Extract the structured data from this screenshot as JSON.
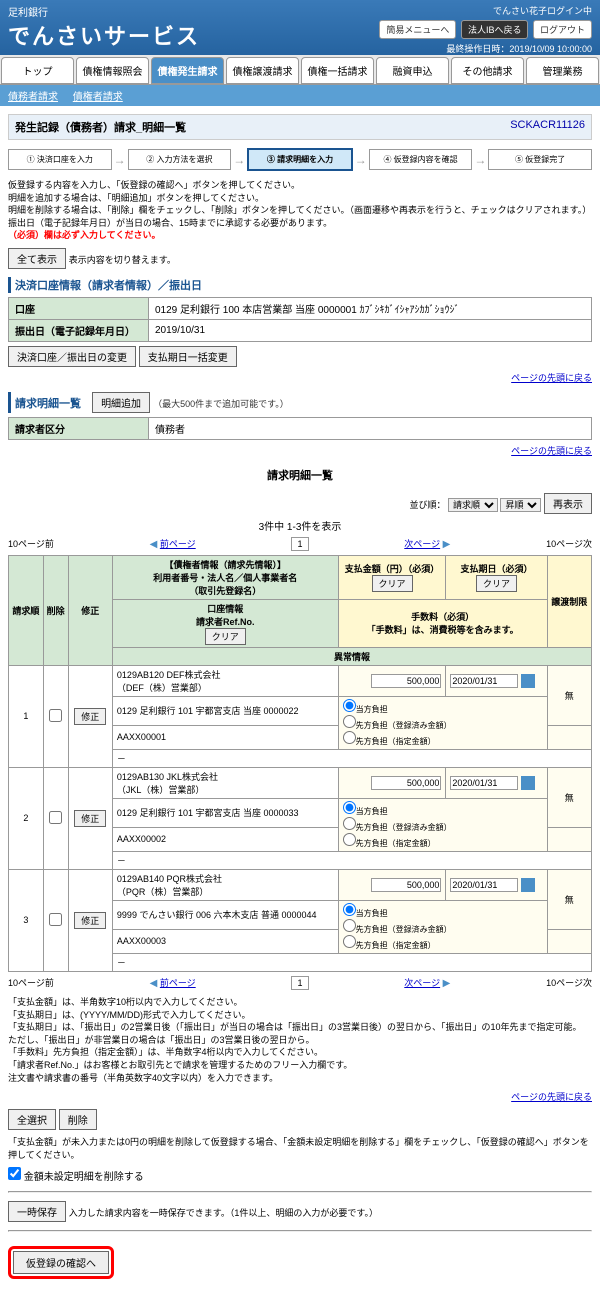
{
  "header": {
    "bank": "足利銀行",
    "service": "でんさいサービス",
    "user": "でんさい花子ログイン中",
    "btns": {
      "simple": "簡易メニューへ",
      "corp": "法人IBへ戻る",
      "logout": "ログアウト"
    },
    "ts": "最終操作日時：2019/10/09 10:00:00"
  },
  "tabs": [
    "トップ",
    "債権情報照会",
    "債権発生請求",
    "債権譲渡請求",
    "債権一括請求",
    "融資申込",
    "その他請求",
    "管理業務"
  ],
  "active_tab": 2,
  "subnav": [
    "債務者請求",
    "債権者請求"
  ],
  "title": "発生記録（債務者）請求_明細一覧",
  "screen_id": "SCKACR11126",
  "steps": [
    "① 決済口座を入力",
    "② 入力方法を選択",
    "③ 請求明細を入力",
    "④ 仮登録内容を確認",
    "⑤ 仮登録完了"
  ],
  "active_step": 2,
  "notes1": "仮登録する内容を入力し、「仮登録の確認へ」ボタンを押してください。\n明細を追加する場合は、「明細追加」ボタンを押してください。\n明細を削除する場合は、「削除」欄をチェックし、「削除」ボタンを押してください。（画面遷移や再表示を行うと、チェックはクリアされます。）\n振出日（電子記録年月日）が当日の場合、15時までに承認する必要があります。",
  "req_note": "（必須）欄は必ず入力してください。",
  "all_show": "全て表示",
  "all_show_note": "表示内容を切り替えます。",
  "sec1": "決済口座情報（請求者情報）／振出日",
  "account": {
    "label": "口座",
    "value": "0129 足利銀行 100 本店営業部 当座 0000001 ｶﾌﾞｼｷｶﾞｲｼｬｱｼｶｶﾞｼｮｳｼﾞ"
  },
  "issue": {
    "label": "振出日（電子記録年月日）",
    "value": "2019/10/31"
  },
  "btns1": [
    "決済口座／振出日の変更",
    "支払期日一括変更"
  ],
  "sec2": "請求明細一覧",
  "add_detail": "明細追加",
  "add_note": "（最大500件まで追加可能です。）",
  "cat": {
    "label": "請求者区分",
    "value": "債務者"
  },
  "list_title": "請求明細一覧",
  "sort": {
    "label": "並び順：",
    "opts": [
      "請求順",
      "昇順"
    ],
    "btn": "再表示"
  },
  "count": "3件中 1-3件を表示",
  "pager": {
    "prev10": "10ページ前",
    "prev": "前ページ",
    "next": "次ページ",
    "next10": "10ページ次"
  },
  "cols": {
    "no": "請求順",
    "del": "削除",
    "edit": "修正",
    "creditor": "【債権者情報（請求先情報）】\n利用者番号・法人名／個人事業者名\n（取引先登録名）",
    "amount": "支払金額（円）（必須）",
    "due": "支払期日（必須）",
    "restrict": "譲渡制限",
    "acct": "口座情報\n請求者Ref.No.",
    "fee": "手数料（必須）\n「手数料」は、消費税等を含みます。",
    "irreg": "異常情報",
    "clear": "クリア"
  },
  "rows": [
    {
      "no": "1",
      "c1": "0129AB120 DEF株式会社",
      "c2": "（DEF（株）営業部）",
      "c3": "0129 足利銀行 101 宇都宮支店 当座 0000022",
      "ref": "AAXX00001",
      "amt": "500,000",
      "due": "2020/01/31",
      "r": "無"
    },
    {
      "no": "2",
      "c1": "0129AB130 JKL株式会社",
      "c2": "（JKL（株）営業部）",
      "c3": "0129 足利銀行 101 宇都宮支店 当座 0000033",
      "ref": "AAXX00002",
      "amt": "500,000",
      "due": "2020/01/31",
      "r": "無"
    },
    {
      "no": "3",
      "c1": "0129AB140 PQR株式会社",
      "c2": "（PQR（株）営業部）",
      "c3": "9999 でんさい銀行 006 六本木支店 普通 0000044",
      "ref": "AAXX00003",
      "amt": "500,000",
      "due": "2020/01/31",
      "r": "無"
    }
  ],
  "radios": [
    "当方負担",
    "先方負担（登録済み金額）",
    "先方負担（指定金額）"
  ],
  "edit_btn": "修正",
  "notes2": "「支払金額」は、半角数字10桁以内で入力してください。\n「支払期日」は、(YYYY/MM/DD)形式で入力してください。\n「支払期日」は、「振出日」の2営業日後（「振出日」が当日の場合は「振出日」の3営業日後）の翌日から、「振出日」の10年先まで指定可能。\nただし、「振出日」が非営業日の場合は「振出日」の3営業日後の翌日から。\n「手数料」先方負担（指定金額）」は、半角数字4桁以内で入力してください。\n「請求者Ref.No.」はお客様とお取引先とで請求を管理するためのフリー入力欄です。\n注文書や請求書の番号（半角英数字40文字以内）を入力できます。",
  "sel_all": "全選択",
  "del_btn": "削除",
  "chk_note": "「支払金額」が未入力または0円の明細を削除して仮登録する場合、「金額未設定明細を削除する」欄をチェックし、「仮登録の確認へ」ボタンを押してください。",
  "chk_label": "金額未設定明細を削除する",
  "save": "一時保存",
  "save_note": "入力した請求内容を一時保存できます。（1件以上、明細の入力が必要です。）",
  "confirm": "仮登録の確認へ",
  "back_link": "ページの先頭に戻る"
}
